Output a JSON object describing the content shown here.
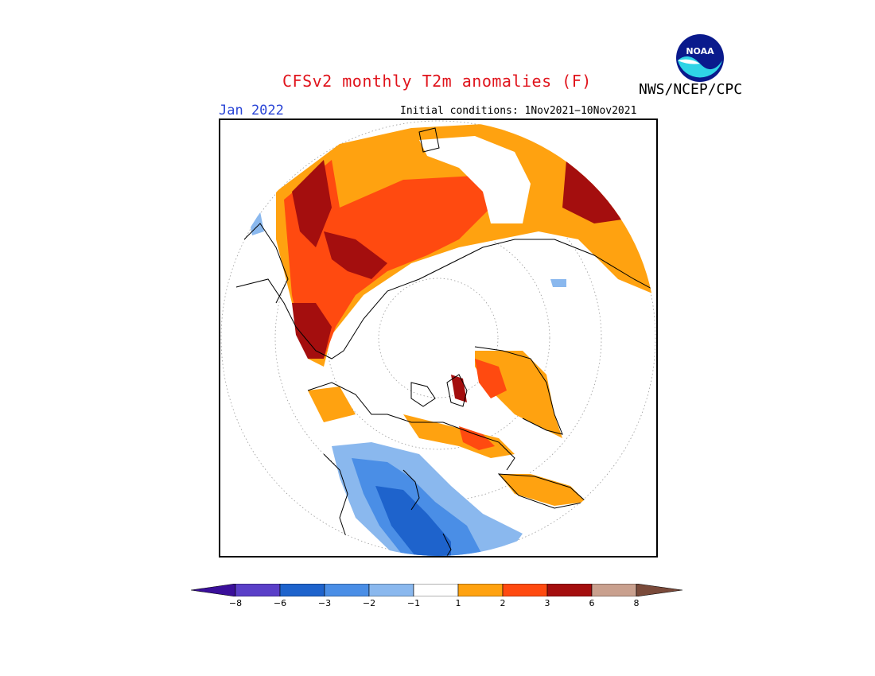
{
  "header": {
    "title": "CFSv2 monthly T2m anomalies (F)",
    "organization": "NWS/NCEP/CPC",
    "month": "Jan 2022",
    "initial_conditions": "Initial conditions: 1Nov2021−10Nov2021"
  },
  "logo": {
    "text": "NOAA",
    "icon": "noaa-logo-icon"
  },
  "map": {
    "projection": "north-polar-stereographic",
    "graticule": "dotted"
  },
  "colorbar": {
    "ticks": [
      "−8",
      "−6",
      "−3",
      "−2",
      "−1",
      "1",
      "2",
      "3",
      "6",
      "8"
    ],
    "bins": [
      {
        "range": "< -8",
        "color": "#3a0f9a"
      },
      {
        "range": "-8 to -6",
        "color": "#5a3fc8"
      },
      {
        "range": "-6 to -3",
        "color": "#1e63cc"
      },
      {
        "range": "-3 to -2",
        "color": "#4a8ee6"
      },
      {
        "range": "-2 to -1",
        "color": "#8ab8ee"
      },
      {
        "range": "-1 to 1",
        "color": "#ffffff"
      },
      {
        "range": "1 to 2",
        "color": "#ffa210"
      },
      {
        "range": "2 to 3",
        "color": "#ff4a10"
      },
      {
        "range": "3 to 6",
        "color": "#a40e0e"
      },
      {
        "range": "6 to 8",
        "color": "#c9a08e"
      },
      {
        "range": "> 8",
        "color": "#7a4a3a"
      }
    ]
  }
}
